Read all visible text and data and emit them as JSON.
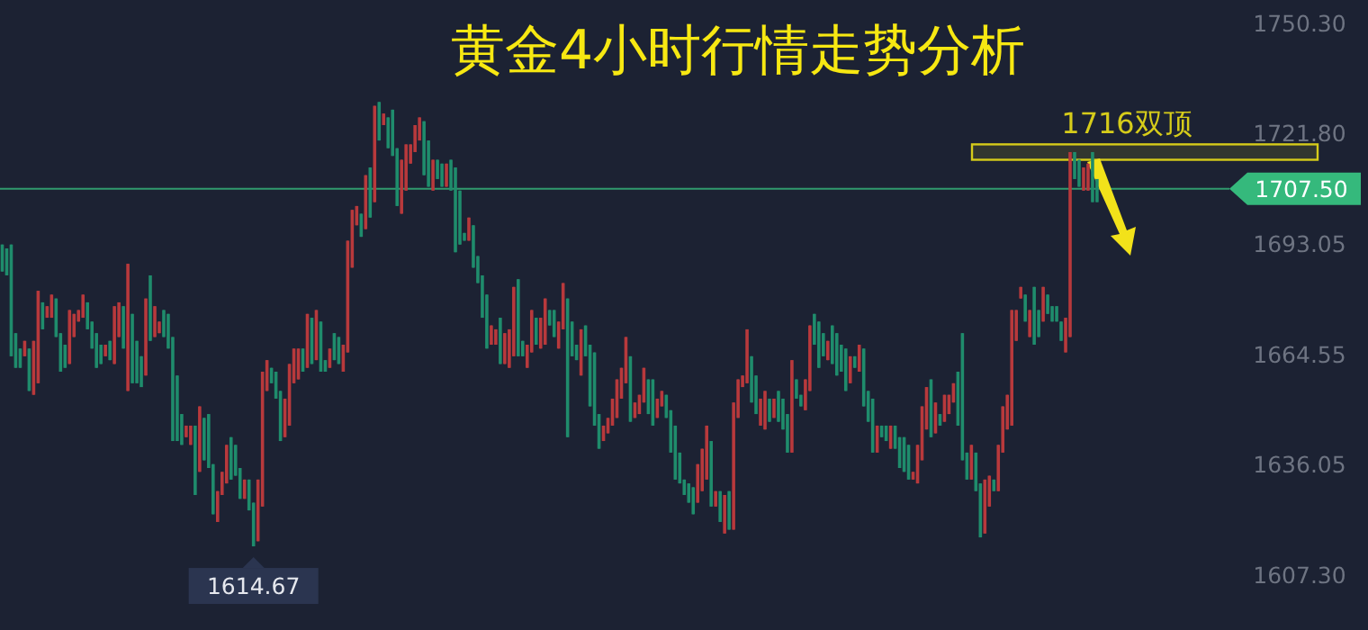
{
  "chart_data": {
    "type": "candlestick",
    "title": "黄金4小时行情走势分析",
    "ylim": [
      1607.3,
      1750.3
    ],
    "yticks": [
      {
        "value": 1750.3,
        "label": "1750.30"
      },
      {
        "value": 1721.8,
        "label": "1721.80"
      },
      {
        "value": 1693.05,
        "label": "1693.05"
      },
      {
        "value": 1664.55,
        "label": "1664.55"
      },
      {
        "value": 1636.05,
        "label": "1636.05"
      },
      {
        "value": 1607.3,
        "label": "1607.30"
      }
    ],
    "tick_labels": "y",
    "ref_lines": [
      {
        "axis": "y",
        "value": 1707.5,
        "label": "1707.50",
        "color": "#35b97c"
      }
    ],
    "bands": [
      {
        "axis": "y",
        "from": 1715,
        "to": 1719,
        "label": "1716双顶",
        "color": "#d6cc1a"
      }
    ],
    "annotations": [
      {
        "text": "1614.67",
        "y": 1614.67
      }
    ],
    "categories": [
      null,
      null,
      null,
      null,
      null,
      null,
      null,
      null,
      null,
      null,
      null,
      null,
      null,
      null,
      null,
      null,
      null,
      null,
      null,
      null,
      null,
      null,
      null,
      null,
      null,
      null,
      null,
      null,
      null,
      null,
      null,
      null,
      null,
      null,
      null,
      null,
      null,
      null,
      null,
      null,
      null,
      null,
      null,
      null,
      null,
      null,
      null,
      null,
      null,
      null,
      null,
      null,
      null,
      null,
      null,
      null,
      null,
      null,
      null,
      null,
      null,
      null,
      null,
      null,
      null,
      null,
      null,
      null,
      null,
      null,
      null,
      null,
      null,
      null,
      null,
      null,
      null,
      null,
      null,
      null,
      null,
      null,
      null,
      null,
      null,
      null,
      null,
      null,
      null,
      null,
      null,
      null,
      null,
      null,
      null,
      null,
      null,
      null,
      null,
      null,
      null,
      null,
      null,
      null,
      null,
      null,
      null,
      null,
      null,
      null,
      null,
      null,
      null,
      null,
      null,
      null,
      null,
      null,
      null,
      null,
      null,
      null,
      null,
      null,
      null,
      null,
      null,
      null,
      null,
      null,
      null,
      null,
      null,
      null,
      null,
      null,
      null,
      null,
      null,
      null,
      null,
      null,
      null,
      null,
      null,
      null,
      null,
      null,
      null,
      null,
      null,
      null,
      null,
      null,
      null,
      null,
      null,
      null,
      null,
      null,
      null,
      null,
      null,
      null,
      null,
      null,
      null,
      null,
      null,
      null,
      null,
      null,
      null,
      null,
      null,
      null,
      null,
      null,
      null,
      null,
      null,
      null,
      null,
      null,
      null,
      null,
      null,
      null,
      null,
      null,
      null,
      null,
      null,
      null,
      null,
      null,
      null,
      null,
      null,
      null,
      null,
      null,
      null,
      null,
      null,
      null,
      null,
      null,
      null,
      null,
      null,
      null,
      null,
      null,
      null,
      null,
      null,
      null,
      null,
      null,
      null,
      null,
      null,
      null,
      null,
      null,
      null,
      null,
      null,
      null,
      null,
      null,
      null,
      null,
      null,
      null,
      null,
      null,
      null,
      null,
      null,
      null,
      null,
      null,
      null,
      null,
      null,
      null,
      null,
      null,
      null,
      null,
      null,
      null,
      null,
      null,
      null,
      null,
      null,
      null,
      null,
      null,
      null,
      null,
      null,
      null,
      null,
      null,
      null,
      null,
      null,
      null,
      null,
      null
    ],
    "ohlc": [
      [
        1693,
        1693,
        1686,
        1686
      ],
      [
        1692,
        1692,
        1685,
        1685
      ],
      [
        1693,
        1693,
        1664,
        1664
      ],
      [
        1670,
        1670,
        1661,
        1661
      ],
      [
        1666,
        1666,
        1661,
        1661
      ],
      [
        1664,
        1668,
        1664,
        1668
      ],
      [
        1666,
        1666,
        1655,
        1655
      ],
      [
        1654,
        1668,
        1654,
        1668
      ],
      [
        1657,
        1681,
        1657,
        1681
      ],
      [
        1678,
        1678,
        1671,
        1671
      ],
      [
        1674,
        1677,
        1674,
        1677
      ],
      [
        1674,
        1680,
        1674,
        1680
      ],
      [
        1679,
        1679,
        1669,
        1669
      ],
      [
        1670,
        1670,
        1660,
        1660
      ],
      [
        1667,
        1667,
        1661,
        1661
      ],
      [
        1662,
        1676,
        1662,
        1676
      ],
      [
        1669,
        1675,
        1669,
        1675
      ],
      [
        1673,
        1676,
        1673,
        1676
      ],
      [
        1674,
        1680,
        1674,
        1680
      ],
      [
        1678,
        1678,
        1671,
        1671
      ],
      [
        1673,
        1673,
        1666,
        1666
      ],
      [
        1670,
        1670,
        1661,
        1661
      ],
      [
        1667,
        1667,
        1662,
        1662
      ],
      [
        1664,
        1667,
        1664,
        1667
      ],
      [
        1668,
        1668,
        1663,
        1663
      ],
      [
        1662,
        1677,
        1662,
        1677
      ],
      [
        1669,
        1678,
        1669,
        1678
      ],
      [
        1677,
        1677,
        1666,
        1666
      ],
      [
        1655,
        1688,
        1655,
        1688
      ],
      [
        1675,
        1675,
        1657,
        1657
      ],
      [
        1668,
        1668,
        1657,
        1657
      ],
      [
        1664,
        1664,
        1656,
        1656
      ],
      [
        1659,
        1679,
        1659,
        1679
      ],
      [
        1685,
        1685,
        1668,
        1668
      ],
      [
        1669,
        1677,
        1669,
        1677
      ],
      [
        1670,
        1673,
        1670,
        1673
      ],
      [
        1676,
        1676,
        1669,
        1669
      ],
      [
        1675,
        1675,
        1666,
        1666
      ],
      [
        1669,
        1669,
        1642,
        1642
      ],
      [
        1659,
        1659,
        1642,
        1642
      ],
      [
        1649,
        1649,
        1641,
        1641
      ],
      [
        1643,
        1646,
        1643,
        1646
      ],
      [
        1641,
        1646,
        1641,
        1646
      ],
      [
        1646,
        1646,
        1628,
        1628
      ],
      [
        1634,
        1651,
        1634,
        1651
      ],
      [
        1648,
        1648,
        1637,
        1637
      ],
      [
        1649,
        1649,
        1635,
        1635
      ],
      [
        1636,
        1636,
        1623,
        1623
      ],
      [
        1621,
        1629,
        1621,
        1629
      ],
      [
        1628,
        1634,
        1628,
        1634
      ],
      [
        1631,
        1641,
        1631,
        1641
      ],
      [
        1643,
        1643,
        1632,
        1632
      ],
      [
        1641,
        1641,
        1633,
        1633
      ],
      [
        1635,
        1635,
        1627,
        1627
      ],
      [
        1627,
        1632,
        1627,
        1632
      ],
      [
        1632,
        1632,
        1624,
        1624
      ],
      [
        1626,
        1626,
        1614.67,
        1614.67
      ],
      [
        1616,
        1632,
        1616,
        1632
      ],
      [
        1625,
        1660,
        1625,
        1660
      ],
      [
        1655,
        1663,
        1655,
        1663
      ],
      [
        1661,
        1661,
        1657,
        1657
      ],
      [
        1660,
        1660,
        1653,
        1653
      ],
      [
        1655,
        1655,
        1642,
        1642
      ],
      [
        1643,
        1653,
        1643,
        1653
      ],
      [
        1646,
        1662,
        1646,
        1662
      ],
      [
        1657,
        1666,
        1657,
        1666
      ],
      [
        1658,
        1666,
        1658,
        1666
      ],
      [
        1666,
        1666,
        1660,
        1660
      ],
      [
        1661,
        1675,
        1661,
        1675
      ],
      [
        1674,
        1674,
        1662,
        1662
      ],
      [
        1663,
        1676,
        1663,
        1676
      ],
      [
        1673,
        1673,
        1660,
        1660
      ],
      [
        1663,
        1663,
        1660,
        1660
      ],
      [
        1661,
        1666,
        1661,
        1666
      ],
      [
        1670,
        1670,
        1663,
        1663
      ],
      [
        1669,
        1669,
        1662,
        1662
      ],
      [
        1660,
        1667,
        1660,
        1667
      ],
      [
        1665,
        1694,
        1665,
        1694
      ],
      [
        1687,
        1702,
        1687,
        1702
      ],
      [
        1698,
        1703,
        1698,
        1703
      ],
      [
        1701,
        1701,
        1695,
        1695
      ],
      [
        1697,
        1711,
        1697,
        1711
      ],
      [
        1713,
        1713,
        1700,
        1700
      ],
      [
        1704,
        1729,
        1704,
        1729
      ],
      [
        1730,
        1730,
        1720,
        1720
      ],
      [
        1724,
        1727,
        1724,
        1727
      ],
      [
        1726,
        1726,
        1718,
        1718
      ],
      [
        1728,
        1728,
        1716,
        1716
      ],
      [
        1718,
        1718,
        1703,
        1703
      ],
      [
        1701,
        1715,
        1701,
        1715
      ],
      [
        1707,
        1719,
        1707,
        1719
      ],
      [
        1714,
        1719,
        1714,
        1719
      ],
      [
        1717,
        1724,
        1717,
        1724
      ],
      [
        1720,
        1726,
        1720,
        1726
      ],
      [
        1725,
        1725,
        1711,
        1711
      ],
      [
        1720,
        1720,
        1708,
        1708
      ],
      [
        1707,
        1715,
        1707,
        1715
      ],
      [
        1715,
        1715,
        1710,
        1710
      ],
      [
        1714,
        1714,
        1708,
        1708
      ],
      [
        1708,
        1714,
        1708,
        1714
      ],
      [
        1715,
        1715,
        1707,
        1707
      ],
      [
        1713,
        1713,
        1691,
        1691
      ],
      [
        1707,
        1707,
        1693,
        1693
      ],
      [
        1696,
        1696,
        1694,
        1694
      ],
      [
        1694,
        1700,
        1694,
        1700
      ],
      [
        1698,
        1698,
        1687,
        1687
      ],
      [
        1690,
        1690,
        1683,
        1683
      ],
      [
        1685,
        1685,
        1674,
        1674
      ],
      [
        1680,
        1680,
        1666,
        1666
      ],
      [
        1667,
        1672,
        1667,
        1672
      ],
      [
        1667,
        1671,
        1667,
        1671
      ],
      [
        1674,
        1674,
        1662,
        1662
      ],
      [
        1662,
        1670,
        1662,
        1670
      ],
      [
        1661,
        1671,
        1661,
        1671
      ],
      [
        1664,
        1682,
        1664,
        1682
      ],
      [
        1684,
        1684,
        1664,
        1664
      ],
      [
        1668,
        1668,
        1664,
        1664
      ],
      [
        1661,
        1667,
        1661,
        1667
      ],
      [
        1665,
        1676,
        1665,
        1676
      ],
      [
        1674,
        1674,
        1667,
        1667
      ],
      [
        1666,
        1674,
        1666,
        1674
      ],
      [
        1667,
        1679,
        1667,
        1679
      ],
      [
        1676,
        1676,
        1672,
        1672
      ],
      [
        1676,
        1676,
        1669,
        1669
      ],
      [
        1666,
        1673,
        1666,
        1673
      ],
      [
        1671,
        1683,
        1671,
        1683
      ],
      [
        1679,
        1679,
        1643,
        1643
      ],
      [
        1673,
        1673,
        1664,
        1664
      ],
      [
        1667,
        1667,
        1663,
        1663
      ],
      [
        1659,
        1671,
        1659,
        1671
      ],
      [
        1672,
        1672,
        1664,
        1664
      ],
      [
        1667,
        1667,
        1651,
        1651
      ],
      [
        1665,
        1665,
        1646,
        1646
      ],
      [
        1649,
        1649,
        1640,
        1640
      ],
      [
        1642,
        1646,
        1642,
        1646
      ],
      [
        1644,
        1648,
        1644,
        1648
      ],
      [
        1646,
        1653,
        1646,
        1653
      ],
      [
        1648,
        1658,
        1648,
        1658
      ],
      [
        1653,
        1661,
        1653,
        1661
      ],
      [
        1657,
        1669,
        1657,
        1669
      ],
      [
        1664,
        1664,
        1647,
        1647
      ],
      [
        1648,
        1652,
        1648,
        1652
      ],
      [
        1649,
        1654,
        1649,
        1654
      ],
      [
        1652,
        1661,
        1652,
        1661
      ],
      [
        1658,
        1658,
        1649,
        1649
      ],
      [
        1658,
        1658,
        1646,
        1646
      ],
      [
        1648,
        1653,
        1648,
        1653
      ],
      [
        1651,
        1655,
        1651,
        1655
      ],
      [
        1654,
        1654,
        1648,
        1648
      ],
      [
        1650,
        1650,
        1639,
        1639
      ],
      [
        1646,
        1646,
        1632,
        1632
      ],
      [
        1639,
        1639,
        1631,
        1631
      ],
      [
        1632,
        1632,
        1628,
        1628
      ],
      [
        1631,
        1631,
        1626,
        1626
      ],
      [
        1630,
        1630,
        1623,
        1623
      ],
      [
        1626,
        1636,
        1626,
        1636
      ],
      [
        1629,
        1640,
        1629,
        1640
      ],
      [
        1632,
        1646,
        1632,
        1646
      ],
      [
        1642,
        1642,
        1625,
        1625
      ],
      [
        1625,
        1629,
        1625,
        1629
      ],
      [
        1629,
        1629,
        1621,
        1621
      ],
      [
        1618,
        1628,
        1618,
        1628
      ],
      [
        1629,
        1629,
        1619,
        1619
      ],
      [
        1619,
        1652,
        1619,
        1652
      ],
      [
        1648,
        1658,
        1648,
        1658
      ],
      [
        1656,
        1659,
        1656,
        1659
      ],
      [
        1657,
        1671,
        1657,
        1671
      ],
      [
        1664,
        1664,
        1652,
        1652
      ],
      [
        1659,
        1659,
        1649,
        1649
      ],
      [
        1646,
        1653,
        1646,
        1653
      ],
      [
        1645,
        1655,
        1645,
        1655
      ],
      [
        1653,
        1653,
        1647,
        1647
      ],
      [
        1648,
        1653,
        1648,
        1653
      ],
      [
        1655,
        1655,
        1647,
        1647
      ],
      [
        1653,
        1653,
        1645,
        1645
      ],
      [
        1649,
        1649,
        1639,
        1639
      ],
      [
        1639,
        1663,
        1639,
        1663
      ],
      [
        1658,
        1658,
        1653,
        1653
      ],
      [
        1654,
        1654,
        1651,
        1651
      ],
      [
        1650,
        1658,
        1650,
        1658
      ],
      [
        1655,
        1672,
        1655,
        1672
      ],
      [
        1675,
        1675,
        1667,
        1667
      ],
      [
        1673,
        1673,
        1661,
        1661
      ],
      [
        1670,
        1670,
        1664,
        1664
      ],
      [
        1663,
        1668,
        1663,
        1668
      ],
      [
        1672,
        1672,
        1662,
        1662
      ],
      [
        1670,
        1670,
        1659,
        1659
      ],
      [
        1667,
        1667,
        1660,
        1660
      ],
      [
        1666,
        1666,
        1655,
        1655
      ],
      [
        1657,
        1664,
        1657,
        1664
      ],
      [
        1664,
        1664,
        1661,
        1661
      ],
      [
        1660,
        1667,
        1660,
        1667
      ],
      [
        1666,
        1666,
        1651,
        1651
      ],
      [
        1655,
        1655,
        1647,
        1647
      ],
      [
        1653,
        1653,
        1639,
        1639
      ],
      [
        1639,
        1646,
        1639,
        1646
      ],
      [
        1646,
        1646,
        1643,
        1643
      ],
      [
        1646,
        1646,
        1642,
        1642
      ],
      [
        1640,
        1646,
        1640,
        1646
      ],
      [
        1646,
        1646,
        1640,
        1640
      ],
      [
        1643,
        1643,
        1635,
        1635
      ],
      [
        1643,
        1643,
        1634,
        1634
      ],
      [
        1641,
        1641,
        1632,
        1632
      ],
      [
        1632,
        1634,
        1632,
        1634
      ],
      [
        1631,
        1641,
        1631,
        1641
      ],
      [
        1637,
        1651,
        1637,
        1651
      ],
      [
        1645,
        1656,
        1645,
        1656
      ],
      [
        1658,
        1658,
        1643,
        1643
      ],
      [
        1644,
        1652,
        1644,
        1652
      ],
      [
        1649,
        1649,
        1646,
        1646
      ],
      [
        1647,
        1654,
        1647,
        1654
      ],
      [
        1649,
        1654,
        1649,
        1654
      ],
      [
        1652,
        1657,
        1652,
        1657
      ],
      [
        1660,
        1660,
        1646,
        1646
      ],
      [
        1670,
        1670,
        1637,
        1637
      ],
      [
        1639,
        1639,
        1632,
        1632
      ],
      [
        1632,
        1641,
        1632,
        1641
      ],
      [
        1639,
        1639,
        1629,
        1629
      ],
      [
        1631,
        1631,
        1617,
        1617
      ],
      [
        1618,
        1632,
        1618,
        1632
      ],
      [
        1625,
        1633,
        1625,
        1633
      ],
      [
        1632,
        1632,
        1629,
        1629
      ],
      [
        1629,
        1641,
        1629,
        1641
      ],
      [
        1639,
        1651,
        1639,
        1651
      ],
      [
        1645,
        1654,
        1645,
        1654
      ],
      [
        1646,
        1676,
        1646,
        1676
      ],
      [
        1668,
        1676,
        1668,
        1676
      ],
      [
        1679,
        1682,
        1679,
        1682
      ],
      [
        1680,
        1680,
        1673,
        1673
      ],
      [
        1669,
        1676,
        1669,
        1676
      ],
      [
        1682,
        1682,
        1667,
        1667
      ],
      [
        1676,
        1676,
        1669,
        1669
      ],
      [
        1673,
        1682,
        1673,
        1682
      ],
      [
        1680,
        1680,
        1675,
        1675
      ],
      [
        1677,
        1677,
        1673,
        1673
      ],
      [
        1677,
        1677,
        1673,
        1673
      ],
      [
        1673,
        1673,
        1668,
        1668
      ],
      [
        1665,
        1674,
        1665,
        1674
      ],
      [
        1669,
        1717,
        1669,
        1717
      ],
      [
        1717,
        1717,
        1710,
        1710
      ],
      [
        1715,
        1715,
        1708,
        1708
      ],
      [
        1707,
        1713,
        1707,
        1713
      ],
      [
        1707,
        1714,
        1707,
        1714
      ],
      [
        1717,
        1717,
        1704,
        1704
      ],
      [
        1710,
        1710,
        1704,
        1704
      ],
      null,
      null,
      null,
      null,
      null,
      null,
      null,
      null,
      null,
      null,
      null,
      null,
      null,
      null,
      null,
      null,
      null,
      null,
      null,
      null,
      null,
      null,
      null,
      null,
      null,
      null,
      null,
      null,
      null
    ]
  }
}
